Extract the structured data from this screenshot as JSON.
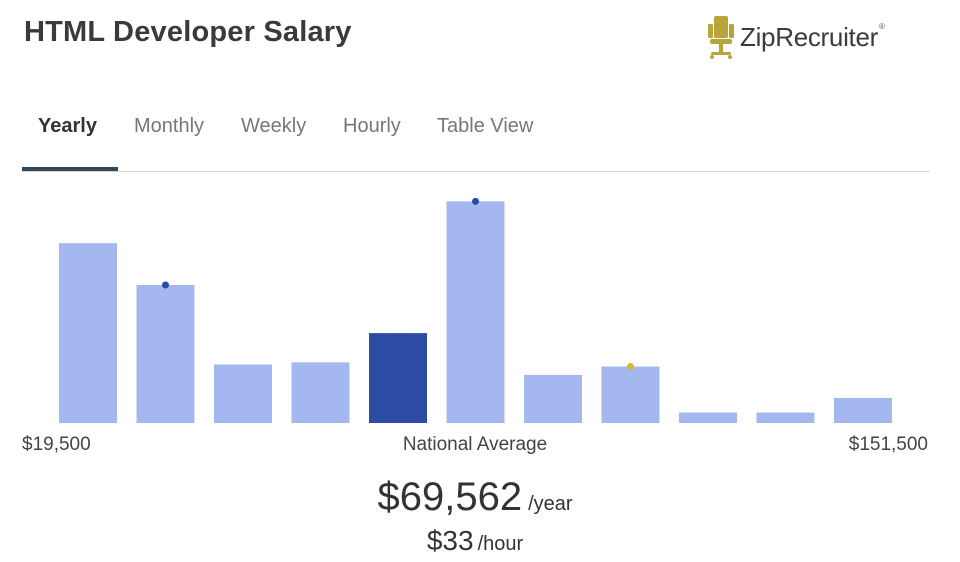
{
  "page": {
    "title": "HTML Developer Salary",
    "brand": "ZipRecruiter",
    "brand_tm": "®",
    "brand_color": "#b8a43a"
  },
  "tabs": [
    {
      "label": "Yearly",
      "active": true
    },
    {
      "label": "Monthly",
      "active": false
    },
    {
      "label": "Weekly",
      "active": false
    },
    {
      "label": "Hourly",
      "active": false
    },
    {
      "label": "Table View",
      "active": false
    }
  ],
  "chart_data": {
    "type": "bar",
    "values": [
      86,
      66,
      28,
      29,
      43,
      106,
      23,
      27,
      5,
      5,
      12
    ],
    "ylim": [
      0,
      110
    ],
    "highlight_index": 4,
    "markers": [
      {
        "index": 1,
        "color": "#2a4aa5"
      },
      {
        "index": 5,
        "color": "#2a4aa5"
      },
      {
        "index": 7,
        "color": "#d8b43a"
      }
    ],
    "bar_color": "#a4b8ef",
    "highlight_color": "#2b4ba5",
    "min_label": "$19,500",
    "max_label": "$151,500",
    "center_label": "National Average"
  },
  "salary": {
    "yearly_value": "$69,562",
    "yearly_unit": "/year",
    "hourly_value": "$33",
    "hourly_unit": "/hour"
  }
}
